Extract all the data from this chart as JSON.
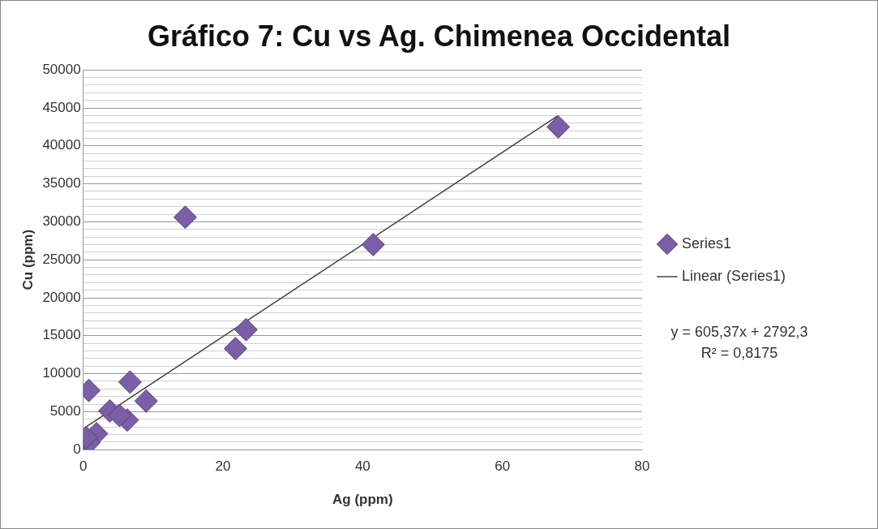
{
  "chart_data": {
    "type": "scatter",
    "title": "Gráfico 7: Cu vs Ag. Chimenea Occidental",
    "xlabel": "Ag (ppm)",
    "ylabel": "Cu (ppm)",
    "xlim": [
      0,
      80
    ],
    "xticks": [
      0,
      20,
      40,
      60,
      80
    ],
    "ylim": [
      0,
      50000
    ],
    "yticks": [
      0,
      {
        "value": 1000,
        "label": null
      },
      {
        "value": 2000,
        "label": null
      },
      {
        "value": 3000,
        "label": null
      },
      {
        "value": 4000,
        "label": null
      },
      5000,
      {
        "value": 6000,
        "label": null
      },
      {
        "value": 7000,
        "label": null
      },
      {
        "value": 8000,
        "label": null
      },
      {
        "value": 9000,
        "label": null
      },
      10000,
      {
        "value": 11000,
        "label": null
      },
      {
        "value": 12000,
        "label": null
      },
      {
        "value": 13000,
        "label": null
      },
      {
        "value": 14000,
        "label": null
      },
      15000,
      {
        "value": 16000,
        "label": null
      },
      {
        "value": 17000,
        "label": null
      },
      {
        "value": 18000,
        "label": null
      },
      {
        "value": 19000,
        "label": null
      },
      20000,
      {
        "value": 21000,
        "label": null
      },
      {
        "value": 22000,
        "label": null
      },
      {
        "value": 23000,
        "label": null
      },
      {
        "value": 24000,
        "label": null
      },
      25000,
      {
        "value": 26000,
        "label": null
      },
      {
        "value": 27000,
        "label": null
      },
      {
        "value": 28000,
        "label": null
      },
      {
        "value": 29000,
        "label": null
      },
      30000,
      {
        "value": 31000,
        "label": null
      },
      {
        "value": 32000,
        "label": null
      },
      {
        "value": 33000,
        "label": null
      },
      {
        "value": 34000,
        "label": null
      },
      35000,
      {
        "value": 36000,
        "label": null
      },
      {
        "value": 37000,
        "label": null
      },
      {
        "value": 38000,
        "label": null
      },
      {
        "value": 39000,
        "label": null
      },
      40000,
      {
        "value": 41000,
        "label": null
      },
      {
        "value": 42000,
        "label": null
      },
      {
        "value": 43000,
        "label": null
      },
      {
        "value": 44000,
        "label": null
      },
      45000,
      {
        "value": 46000,
        "label": null
      },
      {
        "value": 47000,
        "label": null
      },
      {
        "value": 48000,
        "label": null
      },
      {
        "value": 49000,
        "label": null
      },
      50000
    ],
    "grid": "y",
    "legend": "right",
    "series": [
      {
        "name": "Series1",
        "type": "scatter",
        "marker": "diamond",
        "color": "#7b5ea7",
        "x": [
          68,
          14.6,
          41.5,
          23.3,
          21.8,
          0.8,
          6.7,
          9,
          3.8,
          6.3,
          5.2,
          1.9,
          0.8,
          0.4
        ],
        "values": [
          42500,
          30600,
          27000,
          15800,
          13300,
          7800,
          8900,
          6400,
          5100,
          3900,
          4500,
          2100,
          900,
          1600
        ]
      },
      {
        "name": "Linear (Series1)",
        "type": "line",
        "marker": "none",
        "color": "#404040",
        "x": [
          0.4,
          68
        ],
        "values": [
          3000,
          44000
        ]
      }
    ],
    "annotations": [
      "y = 605,37x + 2792,3",
      "R² = 0,8175"
    ]
  }
}
